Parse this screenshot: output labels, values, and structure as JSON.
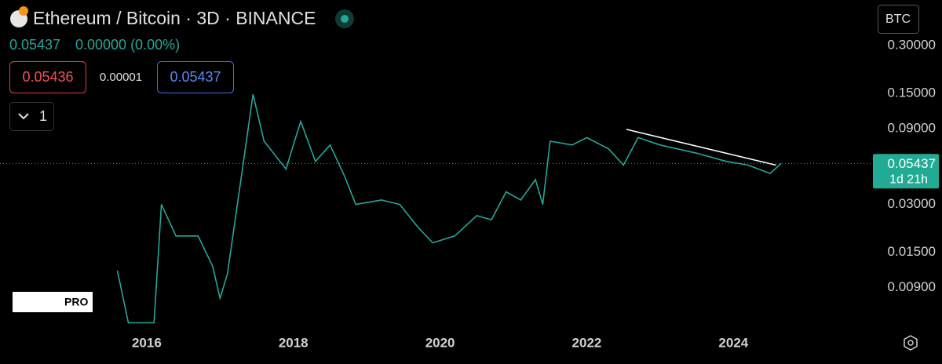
{
  "header": {
    "title": "Ethereum / Bitcoin · 3D · BINANCE",
    "price": "0.05437",
    "change": "0.00000 (0.00%)",
    "bid": "0.05436",
    "spread": "0.00001",
    "ask": "0.05437",
    "indicators": "1",
    "currency": "BTC",
    "countdown": "1d 21h",
    "logo": "PRO"
  },
  "chart_data": {
    "type": "line",
    "log_scale": true,
    "color": "#26a69a",
    "series": [
      {
        "name": "ETHBTC",
        "color": "#26a69a",
        "x": [
          2015.6,
          2015.75,
          2016.1,
          2016.2,
          2016.4,
          2016.7,
          2016.9,
          2017.0,
          2017.1,
          2017.3,
          2017.45,
          2017.6,
          2017.9,
          2018.0,
          2018.1,
          2018.3,
          2018.5,
          2018.7,
          2018.85,
          2019.2,
          2019.45,
          2019.7,
          2019.9,
          2020.2,
          2020.5,
          2020.7,
          2020.9,
          2021.1,
          2021.3,
          2021.4,
          2021.5,
          2021.8,
          2022.0,
          2022.3,
          2022.5,
          2022.7,
          2023.0,
          2023.5,
          2023.9,
          2024.2,
          2024.5,
          2024.65
        ],
        "values": [
          0.0115,
          0.0054,
          0.0054,
          0.03,
          0.019,
          0.019,
          0.0122,
          0.0077,
          0.0109,
          0.048,
          0.148,
          0.075,
          0.05,
          0.071,
          0.1,
          0.056,
          0.071,
          0.045,
          0.03,
          0.032,
          0.03,
          0.0215,
          0.0172,
          0.019,
          0.0255,
          0.024,
          0.036,
          0.032,
          0.043,
          0.03,
          0.075,
          0.071,
          0.079,
          0.067,
          0.053,
          0.079,
          0.071,
          0.063,
          0.056,
          0.053,
          0.047,
          0.05437
        ]
      }
    ],
    "trend_line": {
      "x": [
        2022.54,
        2024.58
      ],
      "values": [
        0.089,
        0.053
      ],
      "color": "#ffffff"
    },
    "last_price": 0.05437,
    "xlim": [
      2014.0,
      2025.88
    ],
    "xticks": [
      2016,
      2018,
      2020,
      2022,
      2024
    ],
    "ylim": [
      0.0049,
      0.58
    ],
    "yticks": [
      {
        "value": 0.3,
        "label": "0.30000"
      },
      {
        "value": 0.15,
        "label": "0.15000"
      },
      {
        "value": 0.09,
        "label": "0.09000"
      },
      {
        "value": 0.03,
        "label": "0.03000"
      },
      {
        "value": 0.015,
        "label": "0.01500"
      },
      {
        "value": 0.009,
        "label": "0.00900"
      }
    ]
  }
}
